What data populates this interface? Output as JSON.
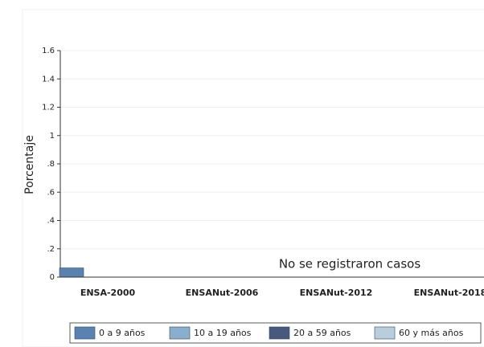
{
  "chart_data": {
    "type": "bar",
    "y_label": "Porcentaje",
    "annotation": "No se registraron casos",
    "categories": [
      "ENSA-2000",
      "ENSANut-2006",
      "ENSANut-2012",
      "ENSANut-2018"
    ],
    "series": [
      {
        "name": "0 a 9 años",
        "color": "#5a82b0",
        "values": [
          0.065,
          0,
          0,
          0
        ]
      },
      {
        "name": "10 a 19 años",
        "color": "#8aaecb",
        "values": [
          0,
          0,
          0,
          0
        ]
      },
      {
        "name": "20 a 59 años",
        "color": "#475a7e",
        "values": [
          0,
          0,
          0,
          0
        ]
      },
      {
        "name": "60 y más años",
        "color": "#b9cedc",
        "values": [
          0,
          0,
          0,
          0
        ]
      }
    ],
    "ylim": [
      0,
      1.6
    ],
    "yticks": [
      0,
      {
        "value": 0.2,
        "label": ".2"
      },
      {
        "value": 0.4,
        "label": ".4"
      },
      {
        "value": 0.6,
        "label": ".6"
      },
      {
        "value": 0.8,
        "label": ".8"
      },
      1,
      1.2,
      1.4,
      1.6
    ],
    "grid": true,
    "legend": "bottom"
  }
}
